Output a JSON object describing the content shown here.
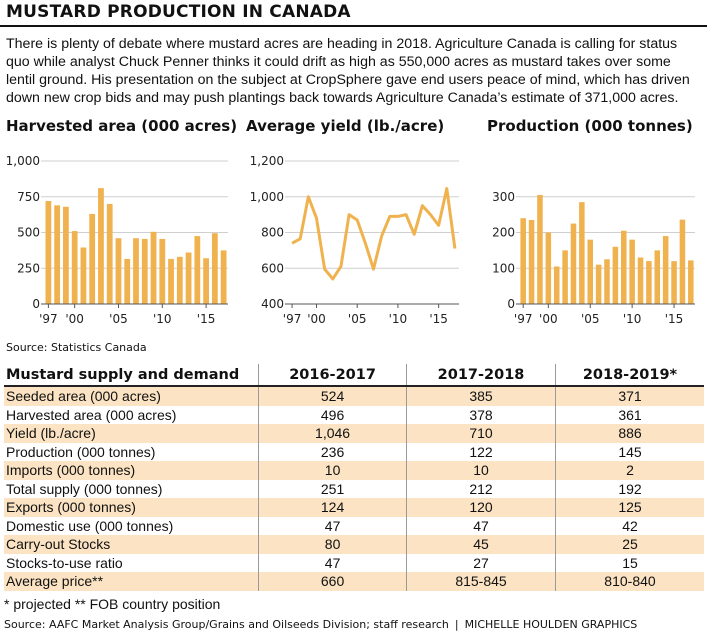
{
  "title": "MUSTARD PRODUCTION IN CANADA",
  "intro": "There is plenty of debate where mustard acres are heading in 2018. Agriculture Canada is calling for status quo while analyst Chuck Penner thinks it could drift as high as 550,000 acres as mustard takes over some lentil ground. His presentation on the subject at CropSphere gave end users peace of mind, which has driven down new crop bids and may push plantings back towards Agriculture Canada’s estimate of 371,000 acres.",
  "chart_data": [
    {
      "type": "bar",
      "title": "Harvested area (000 acres)",
      "x": [
        1997,
        1998,
        1999,
        2000,
        2001,
        2002,
        2003,
        2004,
        2005,
        2006,
        2007,
        2008,
        2009,
        2010,
        2011,
        2012,
        2013,
        2014,
        2015,
        2016,
        2017
      ],
      "values": [
        720,
        690,
        680,
        510,
        395,
        630,
        810,
        700,
        460,
        315,
        460,
        455,
        505,
        455,
        315,
        330,
        360,
        475,
        320,
        495,
        375
      ],
      "ylim": [
        0,
        1000
      ],
      "yticks": [
        0,
        250,
        500,
        750,
        1000
      ],
      "ytick_labels": [
        "0",
        "250",
        "500",
        "750",
        "1,000"
      ],
      "xtick_labels": [
        [
          "'97",
          1997
        ],
        [
          "'00",
          2000
        ],
        [
          "'05",
          2005
        ],
        [
          "'10",
          2010
        ],
        [
          "'15",
          2015
        ]
      ],
      "grid": true,
      "color": "#f0b24f"
    },
    {
      "type": "line",
      "title": "Average yield (lb./acre)",
      "x": [
        1997,
        1998,
        1999,
        2000,
        2001,
        2002,
        2003,
        2004,
        2005,
        2006,
        2007,
        2008,
        2009,
        2010,
        2011,
        2012,
        2013,
        2014,
        2015,
        2016,
        2017
      ],
      "values": [
        740,
        765,
        1000,
        880,
        595,
        540,
        610,
        900,
        870,
        740,
        595,
        780,
        890,
        890,
        900,
        790,
        950,
        900,
        840,
        1046,
        710
      ],
      "ylim": [
        400,
        1200
      ],
      "yticks": [
        400,
        600,
        800,
        1000,
        1200
      ],
      "ytick_labels": [
        "400",
        "600",
        "800",
        "1,000",
        "1,200"
      ],
      "xtick_labels": [
        [
          "'97",
          1997
        ],
        [
          "'00",
          2000
        ],
        [
          "'05",
          2005
        ],
        [
          "'10",
          2010
        ],
        [
          "'15",
          2015
        ]
      ],
      "grid": true,
      "color": "#f0b24f"
    },
    {
      "type": "bar",
      "title": "Production (000 tonnes)",
      "x": [
        1997,
        1998,
        1999,
        2000,
        2001,
        2002,
        2003,
        2004,
        2005,
        2006,
        2007,
        2008,
        2009,
        2010,
        2011,
        2012,
        2013,
        2014,
        2015,
        2016,
        2017
      ],
      "values": [
        240,
        235,
        305,
        200,
        105,
        150,
        225,
        285,
        180,
        110,
        125,
        160,
        205,
        180,
        130,
        120,
        150,
        190,
        120,
        236,
        122
      ],
      "ylim": [
        0,
        400
      ],
      "yticks": [
        0,
        100,
        200,
        300
      ],
      "ytick_labels": [
        "0",
        "100",
        "200",
        "300"
      ],
      "xtick_labels": [
        [
          "'97",
          1997
        ],
        [
          "'00",
          2000
        ],
        [
          "'05",
          2005
        ],
        [
          "'10",
          2010
        ],
        [
          "'15",
          2015
        ]
      ],
      "grid": true,
      "color": "#f0b24f"
    },
    {
      "type": "table",
      "title": "Mustard supply and demand",
      "columns": [
        "2016-2017",
        "2017-2018",
        "2018-2019*"
      ],
      "rows": [
        {
          "label": "Seeded area (000 acres)",
          "values": [
            "524",
            "385",
            "371"
          ]
        },
        {
          "label": "Harvested area (000 acres)",
          "values": [
            "496",
            "378",
            "361"
          ]
        },
        {
          "label": "Yield (lb./acre)",
          "values": [
            "1,046",
            "710",
            "886"
          ]
        },
        {
          "label": "Production (000 tonnes)",
          "values": [
            "236",
            "122",
            "145"
          ]
        },
        {
          "label": "Imports (000 tonnes)",
          "values": [
            "10",
            "10",
            "2"
          ]
        },
        {
          "label": "Total supply (000 tonnes)",
          "values": [
            "251",
            "212",
            "192"
          ]
        },
        {
          "label": "Exports (000 tonnes)",
          "values": [
            "124",
            "120",
            "125"
          ]
        },
        {
          "label": "Domestic use (000 tonnes)",
          "values": [
            "47",
            "47",
            "42"
          ]
        },
        {
          "label": "Carry-out Stocks",
          "values": [
            "80",
            "45",
            "25"
          ]
        },
        {
          "label": "Stocks-to-use ratio",
          "values": [
            "47",
            "27",
            "15"
          ]
        },
        {
          "label": "Average price**",
          "values": [
            "660",
            "815-845",
            "810-840"
          ]
        }
      ]
    }
  ],
  "source_top": "Source: Statistics Canada",
  "footnote": "* projected  ** FOB country position",
  "credit": {
    "source": "Source: AAFC Market Analysis Group/Grains and Oilseeds Division; staff research",
    "separator": "|",
    "graphics": "MICHELLE HOULDEN GRAPHICS"
  }
}
